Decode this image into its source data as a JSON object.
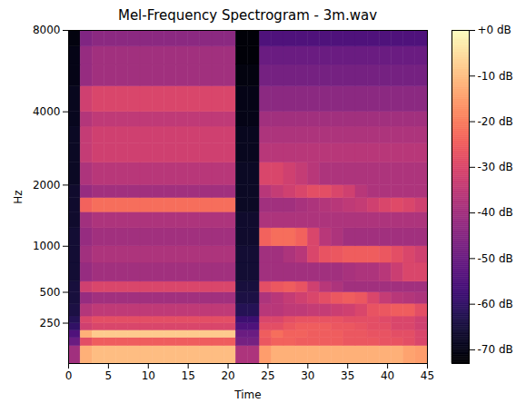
{
  "chart_data": {
    "type": "heatmap",
    "title": "Mel-Frequency Spectrogram - 3m.wav",
    "xlabel": "Time",
    "ylabel": "Hz",
    "xlim": [
      0,
      45
    ],
    "xticks": [
      0,
      5,
      10,
      15,
      20,
      25,
      30,
      35,
      40,
      45
    ],
    "ylim": [
      0,
      8000
    ],
    "yticks": [
      250,
      500,
      1000,
      2000,
      4000,
      8000
    ],
    "color": "magma",
    "x_edges": [
      0,
      1.5,
      3,
      4.5,
      6,
      7.5,
      9,
      10.5,
      12,
      13.5,
      15,
      16.5,
      18,
      19.5,
      21,
      22.5,
      24,
      25.5,
      27,
      28.5,
      30,
      31.5,
      33,
      34.5,
      36,
      37.5,
      39,
      40.5,
      42,
      43.5,
      45
    ],
    "y_edges": [
      0,
      100,
      150,
      200,
      250,
      300,
      400,
      500,
      600,
      800,
      1000,
      1250,
      1500,
      1750,
      2000,
      2500,
      3000,
      3500,
      4000,
      5000,
      6000,
      7000,
      8000
    ],
    "values": [
      [
        -40,
        -12,
        -10,
        -10,
        -10,
        -10,
        -10,
        -10,
        -10,
        -10,
        -10,
        -10,
        -10,
        -10,
        -38,
        -38,
        -15,
        -12,
        -12,
        -12,
        -12,
        -12,
        -12,
        -12,
        -12,
        -12,
        -12,
        -12,
        -14,
        -15
      ],
      [
        -50,
        -28,
        -25,
        -25,
        -25,
        -25,
        -25,
        -25,
        -25,
        -25,
        -25,
        -25,
        -25,
        -25,
        -48,
        -48,
        -26,
        -24,
        -24,
        -25,
        -25,
        -25,
        -25,
        -26,
        -26,
        -26,
        -27,
        -27,
        -28,
        -30
      ],
      [
        -55,
        -12,
        -8,
        -8,
        -8,
        -8,
        -8,
        -8,
        -8,
        -8,
        -8,
        -8,
        -8,
        -8,
        -50,
        -50,
        -25,
        -22,
        -24,
        -24,
        -25,
        -25,
        -25,
        -26,
        -26,
        -27,
        -27,
        -28,
        -28,
        -30
      ],
      [
        -60,
        -32,
        -30,
        -30,
        -30,
        -30,
        -30,
        -30,
        -30,
        -30,
        -30,
        -30,
        -30,
        -30,
        -55,
        -55,
        -28,
        -28,
        -26,
        -25,
        -25,
        -25,
        -26,
        -26,
        -27,
        -28,
        -28,
        -30,
        -30,
        -32
      ],
      [
        -62,
        -30,
        -28,
        -28,
        -28,
        -28,
        -28,
        -28,
        -28,
        -28,
        -28,
        -28,
        -28,
        -28,
        -58,
        -58,
        -30,
        -30,
        -28,
        -27,
        -27,
        -27,
        -27,
        -28,
        -28,
        -28,
        -29,
        -30,
        -30,
        -32
      ],
      [
        -64,
        -37,
        -35,
        -35,
        -35,
        -35,
        -35,
        -35,
        -35,
        -35,
        -35,
        -35,
        -35,
        -35,
        -62,
        -62,
        -36,
        -36,
        -35,
        -35,
        -34,
        -34,
        -33,
        -32,
        -30,
        -27,
        -26,
        -25,
        -25,
        -28
      ],
      [
        -65,
        -42,
        -40,
        -40,
        -40,
        -40,
        -40,
        -40,
        -40,
        -40,
        -40,
        -40,
        -40,
        -40,
        -64,
        -64,
        -38,
        -36,
        -34,
        -32,
        -30,
        -28,
        -26,
        -25,
        -26,
        -30,
        -34,
        -36,
        -37,
        -38
      ],
      [
        -65,
        -32,
        -30,
        -30,
        -30,
        -30,
        -30,
        -30,
        -30,
        -30,
        -30,
        -30,
        -30,
        -30,
        -65,
        -65,
        -28,
        -26,
        -25,
        -27,
        -32,
        -36,
        -38,
        -40,
        -40,
        -40,
        -40,
        -40,
        -40,
        -40
      ],
      [
        -66,
        -42,
        -40,
        -40,
        -40,
        -40,
        -40,
        -40,
        -40,
        -40,
        -40,
        -40,
        -40,
        -40,
        -66,
        -66,
        -40,
        -40,
        -40,
        -40,
        -40,
        -40,
        -40,
        -39,
        -38,
        -38,
        -36,
        -33,
        -30,
        -30
      ],
      [
        -66,
        -40,
        -38,
        -38,
        -38,
        -38,
        -38,
        -38,
        -38,
        -38,
        -38,
        -38,
        -38,
        -38,
        -66,
        -66,
        -40,
        -40,
        -38,
        -36,
        -30,
        -27,
        -26,
        -25,
        -25,
        -25,
        -26,
        -28,
        -30,
        -32
      ],
      [
        -66,
        -42,
        -40,
        -40,
        -40,
        -40,
        -40,
        -40,
        -40,
        -40,
        -40,
        -40,
        -40,
        -40,
        -67,
        -67,
        -24,
        -22,
        -22,
        -24,
        -30,
        -36,
        -38,
        -40,
        -40,
        -40,
        -40,
        -40,
        -40,
        -40
      ],
      [
        -67,
        -40,
        -38,
        -38,
        -38,
        -38,
        -38,
        -38,
        -38,
        -38,
        -38,
        -38,
        -38,
        -38,
        -67,
        -67,
        -38,
        -38,
        -38,
        -38,
        -38,
        -38,
        -38,
        -38,
        -38,
        -38,
        -38,
        -38,
        -38,
        -38
      ],
      [
        -67,
        -24,
        -22,
        -22,
        -22,
        -22,
        -22,
        -22,
        -22,
        -22,
        -22,
        -22,
        -22,
        -22,
        -68,
        -68,
        -40,
        -40,
        -40,
        -39,
        -38,
        -37,
        -36,
        -35,
        -34,
        -32,
        -30,
        -29,
        -30,
        -32
      ],
      [
        -67,
        -42,
        -40,
        -40,
        -40,
        -40,
        -40,
        -40,
        -40,
        -40,
        -40,
        -40,
        -40,
        -40,
        -68,
        -68,
        -36,
        -34,
        -32,
        -30,
        -28,
        -28,
        -30,
        -32,
        -36,
        -38,
        -38,
        -38,
        -38,
        -38
      ],
      [
        -68,
        -38,
        -36,
        -36,
        -36,
        -36,
        -36,
        -36,
        -36,
        -36,
        -36,
        -36,
        -36,
        -36,
        -68,
        -68,
        -30,
        -30,
        -32,
        -34,
        -36,
        -38,
        -38,
        -38,
        -38,
        -38,
        -38,
        -38,
        -38,
        -38
      ],
      [
        -68,
        -34,
        -32,
        -32,
        -32,
        -32,
        -32,
        -32,
        -32,
        -32,
        -32,
        -32,
        -32,
        -32,
        -69,
        -69,
        -36,
        -36,
        -36,
        -36,
        -36,
        -36,
        -36,
        -36,
        -36,
        -36,
        -36,
        -36,
        -36,
        -36
      ],
      [
        -68,
        -34,
        -32,
        -32,
        -32,
        -32,
        -32,
        -32,
        -32,
        -32,
        -32,
        -32,
        -32,
        -32,
        -69,
        -69,
        -38,
        -38,
        -38,
        -38,
        -38,
        -38,
        -38,
        -38,
        -38,
        -38,
        -38,
        -38,
        -38,
        -38
      ],
      [
        -69,
        -37,
        -35,
        -35,
        -35,
        -35,
        -35,
        -35,
        -35,
        -35,
        -35,
        -35,
        -35,
        -35,
        -70,
        -70,
        -40,
        -40,
        -40,
        -40,
        -40,
        -40,
        -40,
        -40,
        -40,
        -40,
        -40,
        -40,
        -40,
        -40
      ],
      [
        -69,
        -32,
        -30,
        -30,
        -30,
        -30,
        -30,
        -30,
        -30,
        -30,
        -30,
        -30,
        -30,
        -30,
        -70,
        -70,
        -44,
        -44,
        -44,
        -44,
        -44,
        -44,
        -44,
        -44,
        -44,
        -44,
        -44,
        -44,
        -44,
        -44
      ],
      [
        -70,
        -42,
        -40,
        -40,
        -40,
        -40,
        -40,
        -40,
        -40,
        -40,
        -40,
        -40,
        -40,
        -40,
        -71,
        -71,
        -48,
        -48,
        -48,
        -48,
        -48,
        -48,
        -48,
        -48,
        -48,
        -48,
        -48,
        -48,
        -48,
        -48
      ],
      [
        -70,
        -42,
        -40,
        -40,
        -40,
        -40,
        -40,
        -40,
        -40,
        -40,
        -40,
        -40,
        -40,
        -40,
        -72,
        -72,
        -50,
        -50,
        -50,
        -50,
        -50,
        -50,
        -50,
        -50,
        -50,
        -50,
        -50,
        -50,
        -50,
        -50
      ],
      [
        -71,
        -46,
        -44,
        -44,
        -44,
        -44,
        -44,
        -44,
        -44,
        -44,
        -44,
        -44,
        -44,
        -44,
        -72,
        -72,
        -55,
        -55,
        -55,
        -55,
        -55,
        -55,
        -55,
        -55,
        -55,
        -55,
        -55,
        -55,
        -55,
        -55
      ]
    ],
    "colorbar": {
      "range": [
        -73,
        0
      ],
      "ticks": [
        {
          "value": 0,
          "label": "+0 dB"
        },
        {
          "value": -10,
          "label": "-10 dB"
        },
        {
          "value": -20,
          "label": "-20 dB"
        },
        {
          "value": -30,
          "label": "-30 dB"
        },
        {
          "value": -40,
          "label": "-40 dB"
        },
        {
          "value": -50,
          "label": "-50 dB"
        },
        {
          "value": -60,
          "label": "-60 dB"
        },
        {
          "value": -70,
          "label": "-70 dB"
        }
      ]
    }
  }
}
